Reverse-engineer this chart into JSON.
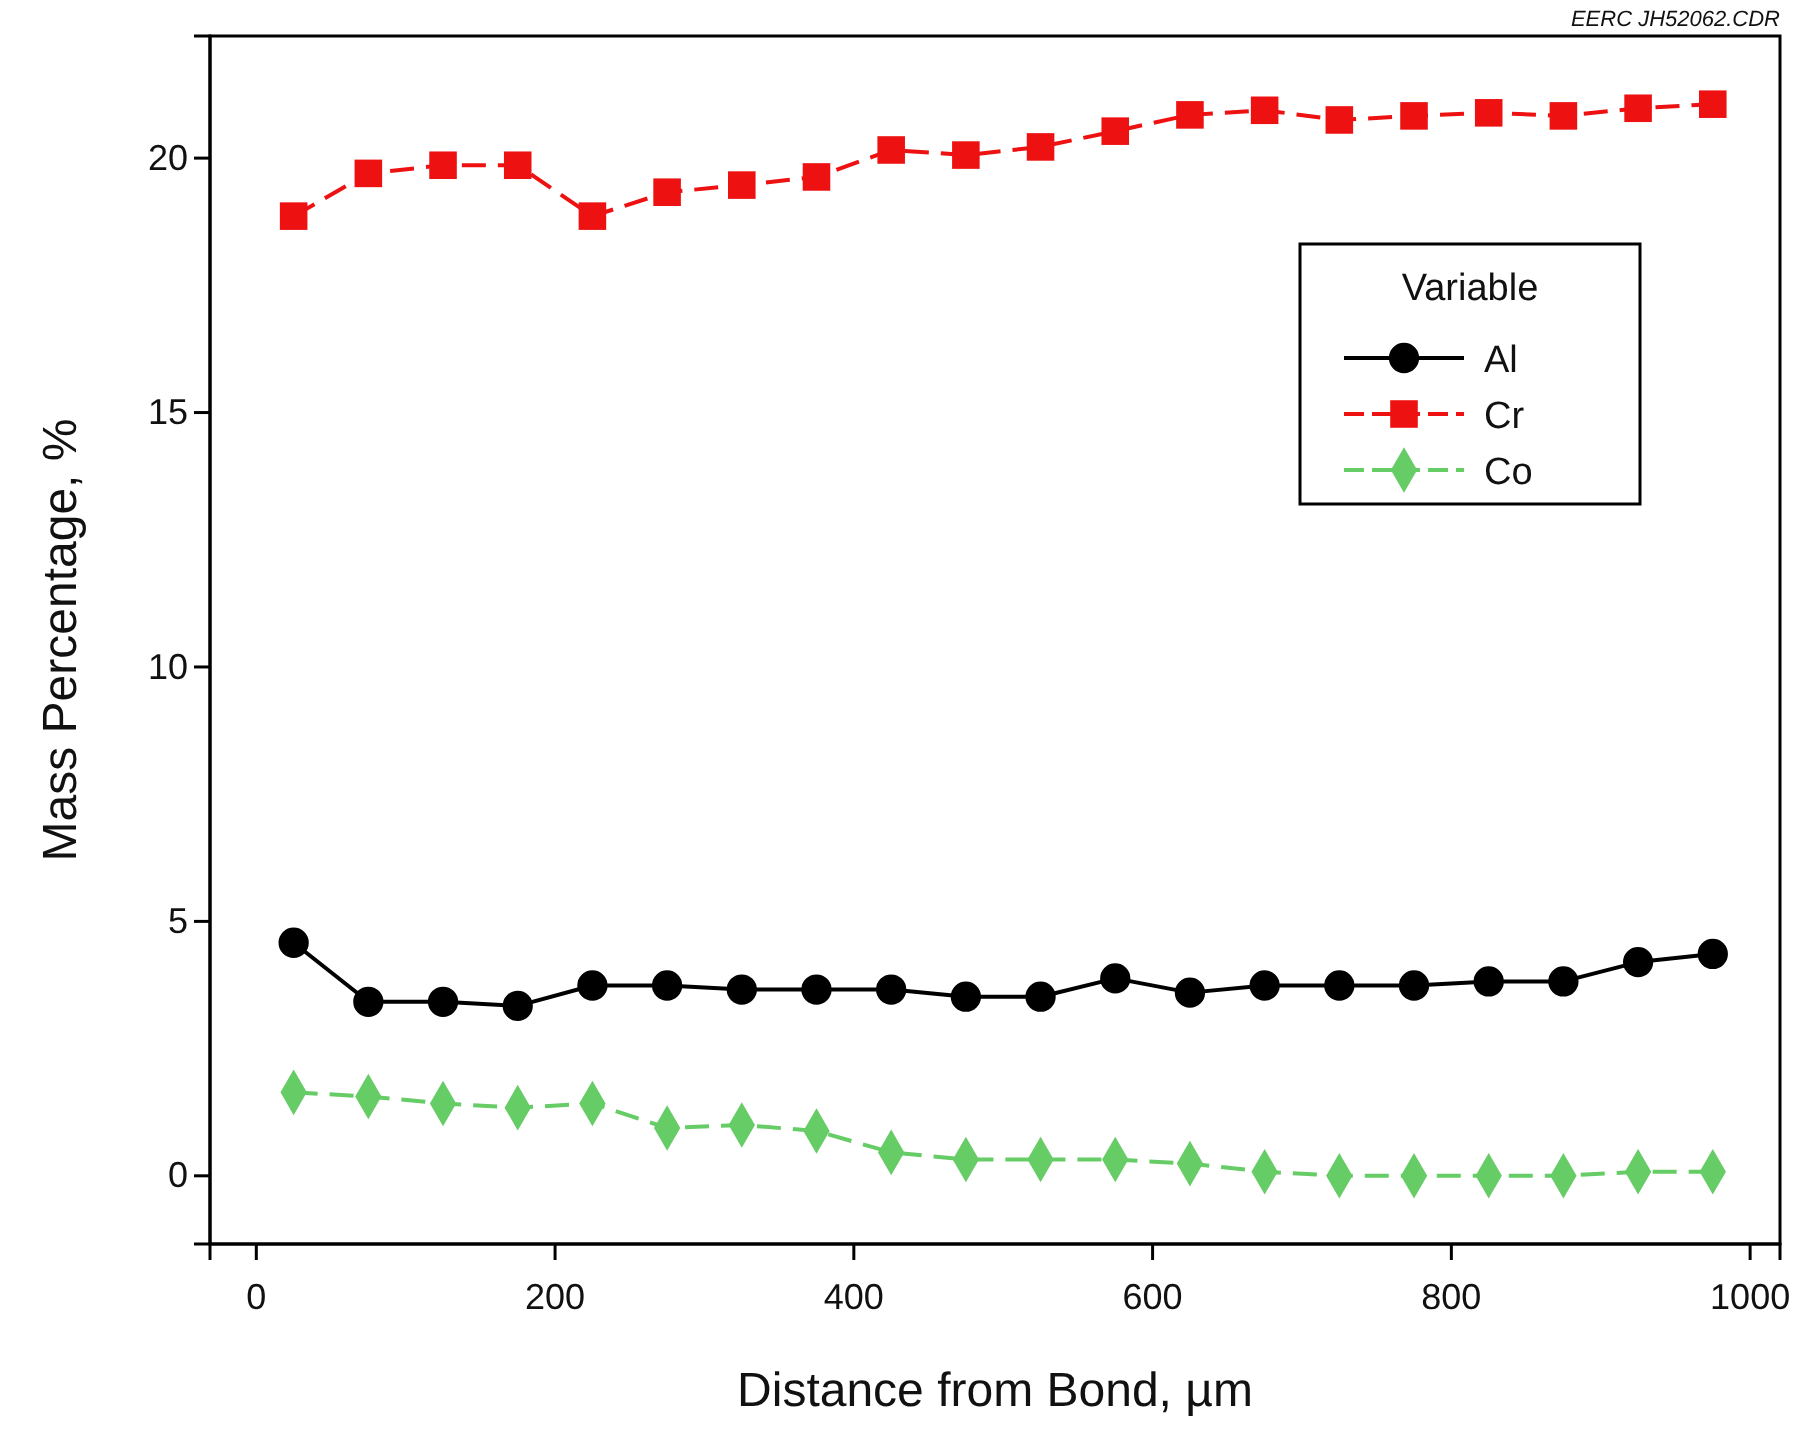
{
  "chart_data": {
    "type": "line",
    "xlabel": "Distance from Bond, µm",
    "ylabel": "Mass Percentage, %",
    "legend_title": "Variable",
    "annotations": [
      "EERC JH52062.CDR"
    ],
    "x": [
      25,
      75,
      125,
      175,
      225,
      275,
      325,
      375,
      425,
      475,
      525,
      575,
      625,
      675,
      725,
      775,
      825,
      875,
      925,
      975
    ],
    "series": [
      {
        "name": "Al",
        "color": "#000000",
        "marker": "circle",
        "line_style": "solid",
        "values": [
          4.58,
          3.42,
          3.42,
          3.34,
          3.74,
          3.74,
          3.66,
          3.66,
          3.66,
          3.52,
          3.52,
          3.88,
          3.6,
          3.74,
          3.74,
          3.74,
          3.82,
          3.82,
          4.2,
          4.36
        ]
      },
      {
        "name": "Cr",
        "color": "#ee1111",
        "marker": "square",
        "line_style": "dashed",
        "values": [
          18.86,
          19.7,
          19.86,
          19.86,
          18.86,
          19.33,
          19.47,
          19.63,
          20.16,
          20.06,
          20.22,
          20.53,
          20.85,
          20.94,
          20.75,
          20.83,
          20.89,
          20.83,
          20.98,
          21.06
        ]
      },
      {
        "name": "Co",
        "color": "#66cc66",
        "marker": "diamond",
        "line_style": "dashed",
        "values": [
          1.64,
          1.56,
          1.42,
          1.34,
          1.42,
          0.94,
          1.0,
          0.88,
          0.46,
          0.32,
          0.32,
          0.32,
          0.24,
          0.08,
          0,
          0,
          0,
          0,
          0.08,
          0.08
        ]
      }
    ],
    "xlim": [
      -31,
      1020
    ],
    "ylim": [
      -1.34,
      22.4
    ],
    "xticks": [
      0,
      200,
      400,
      600,
      800,
      1000
    ],
    "yticks": [
      0,
      5,
      10,
      15,
      20
    ],
    "grid": false,
    "legend": "top right"
  }
}
